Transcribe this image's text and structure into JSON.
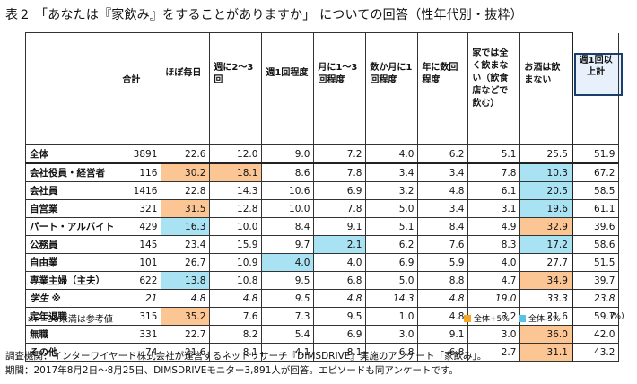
{
  "title": "表２ 「あなたは『家飲み』をすることがありますか」 についての回答（性年代別・抜粋）",
  "headers": [
    "",
    "合計",
    "ほぼ毎日",
    "週に2～3回",
    "週1回程度",
    "月に1～3回程度",
    "数か月に1回程度",
    "年に数回程度",
    "家では全く飲まない（飲食店などで飲む）",
    "お酒は飲まない",
    "週1回以上計"
  ],
  "rows": [
    {
      "label": "全体",
      "values": [
        "3891",
        "22.6",
        "12.0",
        "9.0",
        "7.2",
        "4.0",
        "6.2",
        "5.1",
        "25.5",
        "51.9"
      ],
      "hl": [
        "",
        "",
        "",
        "",
        "",
        "",
        "",
        "",
        "",
        ""
      ]
    },
    {
      "label": "会社役員・経営者",
      "values": [
        "116",
        "30.2",
        "18.1",
        "8.6",
        "7.8",
        "3.4",
        "3.4",
        "7.8",
        "10.3",
        "67.2"
      ],
      "hl": [
        "",
        "o",
        "o",
        "",
        "",
        "",
        "",
        "",
        "b",
        ""
      ]
    },
    {
      "label": "会社員",
      "values": [
        "1416",
        "22.8",
        "14.3",
        "10.6",
        "6.9",
        "3.2",
        "4.8",
        "6.1",
        "20.5",
        "58.5"
      ],
      "hl": [
        "",
        "",
        "",
        "",
        "",
        "",
        "",
        "",
        "b",
        ""
      ]
    },
    {
      "label": "自営業",
      "values": [
        "321",
        "31.5",
        "12.8",
        "10.0",
        "7.8",
        "5.0",
        "3.4",
        "3.1",
        "19.6",
        "61.1"
      ],
      "hl": [
        "",
        "o",
        "",
        "",
        "",
        "",
        "",
        "",
        "b",
        ""
      ]
    },
    {
      "label": "パート・アルバイト",
      "values": [
        "429",
        "16.3",
        "10.0",
        "8.4",
        "9.1",
        "5.1",
        "8.4",
        "4.9",
        "32.9",
        "39.6"
      ],
      "hl": [
        "",
        "b",
        "",
        "",
        "",
        "",
        "",
        "",
        "o",
        ""
      ]
    },
    {
      "label": "公務員",
      "values": [
        "145",
        "23.4",
        "15.9",
        "9.7",
        "2.1",
        "6.2",
        "7.6",
        "8.3",
        "17.2",
        "58.6"
      ],
      "hl": [
        "",
        "",
        "",
        "",
        "b",
        "",
        "",
        "",
        "b",
        ""
      ]
    },
    {
      "label": "自由業",
      "values": [
        "101",
        "26.7",
        "10.9",
        "4.0",
        "4.0",
        "6.9",
        "5.9",
        "4.0",
        "27.7",
        "51.5"
      ],
      "hl": [
        "",
        "",
        "",
        "b",
        "",
        "",
        "",
        "",
        "",
        ""
      ]
    },
    {
      "label": "専業主婦（主夫）",
      "values": [
        "622",
        "13.8",
        "10.8",
        "9.5",
        "6.8",
        "5.0",
        "8.8",
        "4.7",
        "34.9",
        "39.7"
      ],
      "hl": [
        "",
        "b",
        "",
        "",
        "",
        "",
        "",
        "",
        "o",
        ""
      ]
    },
    {
      "label": "学生 ※",
      "values": [
        "21",
        "4.8",
        "4.8",
        "9.5",
        "4.8",
        "14.3",
        "4.8",
        "19.0",
        "33.3",
        "23.8"
      ],
      "hl": [
        "",
        "",
        "",
        "",
        "",
        "",
        "",
        "",
        "",
        ""
      ],
      "italic": true
    },
    {
      "label": "定年退職",
      "values": [
        "315",
        "35.2",
        "7.6",
        "7.3",
        "9.5",
        "1.0",
        "4.8",
        "3.2",
        "21.6",
        "59.7"
      ],
      "hl": [
        "",
        "o",
        "",
        "",
        "",
        "",
        "",
        "",
        "",
        ""
      ]
    },
    {
      "label": "無職",
      "values": [
        "331",
        "22.7",
        "8.2",
        "5.4",
        "6.9",
        "3.0",
        "9.1",
        "3.0",
        "36.0",
        "42.0"
      ],
      "hl": [
        "",
        "",
        "",
        "",
        "",
        "",
        "",
        "",
        "o",
        ""
      ]
    },
    {
      "label": "その他",
      "values": [
        "74",
        "21.6",
        "8.1",
        "4.1",
        "8.1",
        "6.8",
        "6.8",
        "2.7",
        "31.1",
        "43.2"
      ],
      "hl": [
        "",
        "",
        "",
        "",
        "",
        "",
        "",
        "",
        "o",
        ""
      ]
    }
  ],
  "note": "※n=30未満は参考値",
  "legend": {
    "plus_label": "全体+5%",
    "minus_label": "全体-5%",
    "unit": "(%)",
    "plus_color": "#f5a623",
    "minus_color": "#56c2e6"
  },
  "footer": {
    "line1": "調査機関：インターワイヤード株式会社が運営するネットリサーチ『DIMSDRIVE』実施のアンケート「家飲み」。",
    "line2": "期間：2017年8月2日～8月25日、DIMSDRIVEモニター3,891人が回答。エピソードも同アンケートです。"
  }
}
